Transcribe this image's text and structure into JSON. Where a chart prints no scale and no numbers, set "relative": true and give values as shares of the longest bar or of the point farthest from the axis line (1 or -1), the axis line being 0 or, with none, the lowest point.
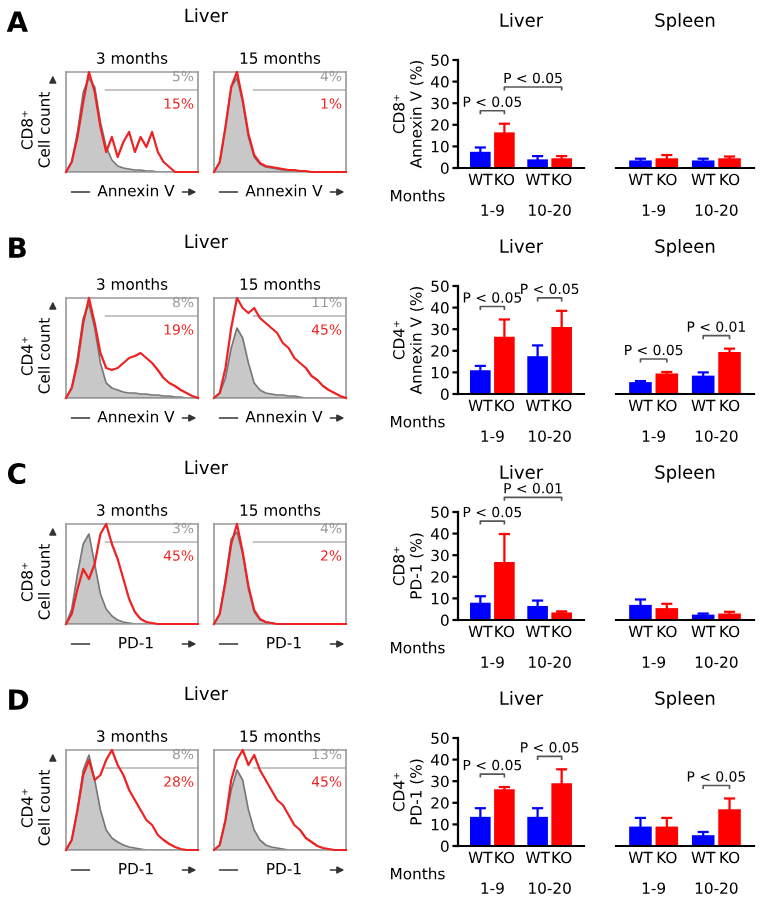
{
  "chart_data": [
    {
      "type": "area",
      "relative": true,
      "categories": [
        null,
        null,
        null,
        null,
        null,
        null,
        null,
        null,
        null,
        null,
        null,
        null,
        null,
        null,
        null,
        null,
        null,
        null,
        null,
        null,
        null,
        null,
        null,
        null
      ],
      "title": "3 months",
      "xlabel": "Annexin V",
      "ylabel": "CD8⁺\nCell count",
      "annotations": [
        "A",
        "Liver",
        "5%",
        "15%"
      ],
      "ref_lines": [
        {
          "axis": "y",
          "value": 0.82,
          "color": "#b0b0b0"
        }
      ],
      "series": [
        {
          "type": "area",
          "color": "#c8c8c8",
          "values": [
            0,
            0.1,
            0.4,
            0.8,
            0.94,
            0.85,
            0.5,
            0.25,
            0.12,
            0.06,
            0.04,
            0.03,
            0.02,
            0.02,
            0.01,
            0.01,
            0,
            0,
            0,
            0,
            0,
            0,
            0,
            0
          ]
        },
        {
          "type": "line",
          "color": "#ee2222",
          "values": [
            0,
            0.1,
            0.35,
            0.7,
            1.0,
            0.8,
            0.45,
            0.2,
            0.35,
            0.15,
            0.3,
            0.4,
            0.2,
            0.35,
            0.25,
            0.4,
            0.2,
            0.1,
            0.05,
            0,
            0,
            0,
            0,
            0
          ]
        }
      ]
    },
    {
      "type": "area",
      "relative": true,
      "categories": [
        null,
        null,
        null,
        null,
        null,
        null,
        null,
        null,
        null,
        null,
        null,
        null,
        null,
        null,
        null,
        null,
        null,
        null,
        null,
        null,
        null,
        null,
        null,
        null
      ],
      "title": "15 months",
      "xlabel": "Annexin V",
      "annotations": [
        "4%",
        "1%"
      ],
      "ref_lines": [
        {
          "axis": "y",
          "value": 0.82,
          "color": "#b0b0b0"
        }
      ],
      "series": [
        {
          "type": "area",
          "color": "#c8c8c8",
          "values": [
            0,
            0.1,
            0.45,
            0.85,
            0.94,
            0.7,
            0.35,
            0.15,
            0.08,
            0.05,
            0.04,
            0.03,
            0.02,
            0.02,
            0.01,
            0.01,
            0,
            0,
            0,
            0,
            0,
            0,
            0,
            0
          ]
        },
        {
          "type": "line",
          "color": "#ee2222",
          "values": [
            0,
            0.1,
            0.45,
            0.85,
            1.0,
            0.72,
            0.38,
            0.17,
            0.09,
            0.06,
            0.05,
            0.04,
            0.03,
            0.02,
            0.02,
            0.01,
            0.01,
            0,
            0,
            0,
            0,
            0,
            0,
            0
          ]
        }
      ]
    },
    {
      "type": "bar",
      "title": "Liver",
      "ylabel": "CD8⁺\nAnnexin V (%)",
      "xlabel": "Months",
      "categories": [
        "1-9",
        "10-20"
      ],
      "ylim": [
        0,
        50
      ],
      "yticks": [
        0,
        10,
        20,
        30,
        40,
        50
      ],
      "series": [
        {
          "name": "WT",
          "color": "#0000ff",
          "values": [
            7.5,
            4
          ],
          "errors": [
            2,
            1.5
          ]
        },
        {
          "name": "KO",
          "color": "#ff0000",
          "values": [
            16.5,
            4.5
          ],
          "errors": [
            4,
            1
          ]
        }
      ],
      "annotations": [
        "P < 0.05",
        null,
        "P < 0.05"
      ],
      "legend": "bottom"
    },
    {
      "type": "bar",
      "title": "Spleen",
      "categories": [
        "1-9",
        "10-20"
      ],
      "ylim": [
        0,
        50
      ],
      "yticks": [
        0,
        10,
        20,
        30,
        40,
        50
      ],
      "tick_labels": "x",
      "series": [
        {
          "name": "WT",
          "color": "#0000ff",
          "values": [
            3.5,
            3.5
          ],
          "errors": [
            0.8,
            0.8
          ]
        },
        {
          "name": "KO",
          "color": "#ff0000",
          "values": [
            4.5,
            4.5
          ],
          "errors": [
            1.5,
            0.8
          ]
        }
      ],
      "legend": "bottom"
    },
    {
      "type": "area",
      "relative": true,
      "categories": [
        null,
        null,
        null,
        null,
        null,
        null,
        null,
        null,
        null,
        null,
        null,
        null,
        null,
        null,
        null,
        null,
        null,
        null,
        null,
        null,
        null,
        null,
        null,
        null
      ],
      "title": "3 months",
      "xlabel": "Annexin V",
      "ylabel": "CD4⁺\nCell count",
      "annotations": [
        "B",
        "Liver",
        "8%",
        "19%"
      ],
      "ref_lines": [
        {
          "axis": "y",
          "value": 0.82,
          "color": "#b0b0b0"
        }
      ],
      "series": [
        {
          "type": "area",
          "color": "#c8c8c8",
          "values": [
            0,
            0.1,
            0.4,
            0.8,
            0.94,
            0.7,
            0.35,
            0.15,
            0.1,
            0.08,
            0.06,
            0.05,
            0.05,
            0.04,
            0.04,
            0.03,
            0.03,
            0.02,
            0.02,
            0.01,
            0.01,
            0,
            0,
            0
          ]
        },
        {
          "type": "line",
          "color": "#ee2222",
          "values": [
            0,
            0.1,
            0.35,
            0.75,
            1.0,
            0.75,
            0.45,
            0.3,
            0.28,
            0.3,
            0.35,
            0.4,
            0.42,
            0.45,
            0.4,
            0.35,
            0.28,
            0.2,
            0.15,
            0.12,
            0.08,
            0.05,
            0.02,
            0
          ]
        }
      ]
    },
    {
      "type": "area",
      "relative": true,
      "categories": [
        null,
        null,
        null,
        null,
        null,
        null,
        null,
        null,
        null,
        null,
        null,
        null,
        null,
        null,
        null,
        null,
        null,
        null,
        null,
        null,
        null,
        null,
        null,
        null
      ],
      "title": "15 months",
      "xlabel": "Annexin V",
      "annotations": [
        "11%",
        "45%"
      ],
      "ref_lines": [
        {
          "axis": "y",
          "value": 0.82,
          "color": "#b0b0b0"
        }
      ],
      "series": [
        {
          "type": "area",
          "color": "#c8c8c8",
          "values": [
            0,
            0.05,
            0.2,
            0.5,
            0.7,
            0.6,
            0.35,
            0.15,
            0.08,
            0.05,
            0.04,
            0.03,
            0.03,
            0.02,
            0.02,
            0.01,
            0,
            0,
            0,
            0,
            0,
            0,
            0,
            0
          ]
        },
        {
          "type": "line",
          "color": "#ee2222",
          "values": [
            0,
            0.05,
            0.3,
            0.7,
            1.0,
            0.9,
            0.85,
            0.9,
            0.8,
            0.75,
            0.7,
            0.65,
            0.55,
            0.5,
            0.4,
            0.35,
            0.3,
            0.22,
            0.18,
            0.12,
            0.08,
            0.05,
            0.02,
            0
          ]
        }
      ]
    },
    {
      "type": "bar",
      "title": "Liver",
      "ylabel": "CD4⁺\nAnnexin V (%)",
      "xlabel": "Months",
      "categories": [
        "1-9",
        "10-20"
      ],
      "ylim": [
        0,
        50
      ],
      "yticks": [
        0,
        10,
        20,
        30,
        40,
        50
      ],
      "series": [
        {
          "name": "WT",
          "color": "#0000ff",
          "values": [
            11,
            17.5
          ],
          "errors": [
            2,
            5
          ]
        },
        {
          "name": "KO",
          "color": "#ff0000",
          "values": [
            26.5,
            31
          ],
          "errors": [
            8,
            7.5
          ]
        }
      ],
      "annotations": [
        "P < 0.05",
        "P < 0.05"
      ],
      "legend": "bottom"
    },
    {
      "type": "bar",
      "title": "Spleen",
      "categories": [
        "1-9",
        "10-20"
      ],
      "ylim": [
        0,
        50
      ],
      "yticks": [
        0,
        10,
        20,
        30,
        40,
        50
      ],
      "tick_labels": "x",
      "series": [
        {
          "name": "WT",
          "color": "#0000ff",
          "values": [
            5.5,
            8.5
          ],
          "errors": [
            0.5,
            1.5
          ]
        },
        {
          "name": "KO",
          "color": "#ff0000",
          "values": [
            9.5,
            19.5
          ],
          "errors": [
            0.7,
            1.5
          ]
        }
      ],
      "annotations": [
        "P < 0.05",
        "P < 0.01"
      ],
      "legend": "bottom"
    },
    {
      "type": "area",
      "relative": true,
      "categories": [
        null,
        null,
        null,
        null,
        null,
        null,
        null,
        null,
        null,
        null,
        null,
        null,
        null,
        null,
        null,
        null,
        null,
        null,
        null,
        null,
        null,
        null,
        null,
        null
      ],
      "title": "3 months",
      "xlabel": "PD-1",
      "ylabel": "CD8⁺\nCell count",
      "annotations": [
        "C",
        "Liver",
        "3%",
        "45%"
      ],
      "ref_lines": [
        {
          "axis": "y",
          "value": 0.82,
          "color": "#b0b0b0"
        }
      ],
      "series": [
        {
          "type": "area",
          "color": "#c8c8c8",
          "values": [
            0,
            0.15,
            0.5,
            0.8,
            0.9,
            0.6,
            0.3,
            0.15,
            0.08,
            0.04,
            0.02,
            0.01,
            0,
            0,
            0,
            0,
            0,
            0,
            0,
            0,
            0,
            0,
            0,
            0
          ]
        },
        {
          "type": "line",
          "color": "#ee2222",
          "values": [
            0,
            0.1,
            0.35,
            0.55,
            0.45,
            0.6,
            0.9,
            1.0,
            0.8,
            0.65,
            0.45,
            0.25,
            0.12,
            0.05,
            0.02,
            0.01,
            0,
            0,
            0,
            0,
            0,
            0,
            0,
            0
          ]
        }
      ]
    },
    {
      "type": "area",
      "relative": true,
      "categories": [
        null,
        null,
        null,
        null,
        null,
        null,
        null,
        null,
        null,
        null,
        null,
        null,
        null,
        null,
        null,
        null,
        null,
        null,
        null,
        null,
        null,
        null,
        null,
        null
      ],
      "title": "15 months",
      "xlabel": "PD-1",
      "annotations": [
        "4%",
        "2%"
      ],
      "ref_lines": [
        {
          "axis": "y",
          "value": 0.82,
          "color": "#b0b0b0"
        }
      ],
      "series": [
        {
          "type": "area",
          "color": "#c8c8c8",
          "values": [
            0,
            0.1,
            0.45,
            0.85,
            0.92,
            0.7,
            0.35,
            0.12,
            0.04,
            0.02,
            0.01,
            0,
            0,
            0,
            0,
            0,
            0,
            0,
            0,
            0,
            0,
            0,
            0,
            0
          ]
        },
        {
          "type": "line",
          "color": "#ee2222",
          "values": [
            0,
            0.1,
            0.42,
            0.8,
            1.0,
            0.72,
            0.38,
            0.14,
            0.05,
            0.02,
            0.01,
            0,
            0,
            0,
            0,
            0,
            0,
            0,
            0,
            0,
            0,
            0,
            0,
            0
          ]
        }
      ]
    },
    {
      "type": "bar",
      "title": "Liver",
      "ylabel": "CD8⁺\nPD-1 (%)",
      "xlabel": "Months",
      "categories": [
        "1-9",
        "10-20"
      ],
      "ylim": [
        0,
        50
      ],
      "yticks": [
        0,
        10,
        20,
        30,
        40,
        50
      ],
      "series": [
        {
          "name": "WT",
          "color": "#0000ff",
          "values": [
            8,
            6.5
          ],
          "errors": [
            3,
            2.5
          ]
        },
        {
          "name": "KO",
          "color": "#ff0000",
          "values": [
            26.8,
            3.5
          ],
          "errors": [
            13,
            0.5
          ]
        }
      ],
      "annotations": [
        "P < 0.05",
        null,
        "P < 0.01"
      ],
      "legend": "bottom"
    },
    {
      "type": "bar",
      "title": "Spleen",
      "categories": [
        "1-9",
        "10-20"
      ],
      "ylim": [
        0,
        50
      ],
      "yticks": [
        0,
        10,
        20,
        30,
        40,
        50
      ],
      "tick_labels": "x",
      "series": [
        {
          "name": "WT",
          "color": "#0000ff",
          "values": [
            7,
            2.5
          ],
          "errors": [
            2.5,
            0.5
          ]
        },
        {
          "name": "KO",
          "color": "#ff0000",
          "values": [
            5.5,
            3
          ],
          "errors": [
            2,
            0.8
          ]
        }
      ],
      "legend": "bottom"
    },
    {
      "type": "area",
      "relative": true,
      "categories": [
        null,
        null,
        null,
        null,
        null,
        null,
        null,
        null,
        null,
        null,
        null,
        null,
        null,
        null,
        null,
        null,
        null,
        null,
        null,
        null,
        null,
        null,
        null,
        null
      ],
      "title": "3 months",
      "xlabel": "PD-1",
      "ylabel": "CD4⁺\nCell count",
      "annotations": [
        "D",
        "Liver",
        "8%",
        "28%"
      ],
      "ref_lines": [
        {
          "axis": "y",
          "value": 0.82,
          "color": "#b0b0b0"
        }
      ],
      "series": [
        {
          "type": "area",
          "color": "#c8c8c8",
          "values": [
            0,
            0.1,
            0.4,
            0.8,
            0.95,
            0.7,
            0.4,
            0.2,
            0.12,
            0.08,
            0.05,
            0.03,
            0.02,
            0.01,
            0,
            0,
            0,
            0,
            0,
            0,
            0,
            0,
            0,
            0
          ]
        },
        {
          "type": "line",
          "color": "#ee2222",
          "values": [
            0,
            0.1,
            0.4,
            0.75,
            0.9,
            0.7,
            0.75,
            0.9,
            1.0,
            0.85,
            0.75,
            0.6,
            0.5,
            0.4,
            0.3,
            0.25,
            0.15,
            0.1,
            0.06,
            0.03,
            0.01,
            0,
            0,
            0
          ]
        }
      ]
    },
    {
      "type": "area",
      "relative": true,
      "categories": [
        null,
        null,
        null,
        null,
        null,
        null,
        null,
        null,
        null,
        null,
        null,
        null,
        null,
        null,
        null,
        null,
        null,
        null,
        null,
        null,
        null,
        null,
        null,
        null
      ],
      "title": "15 months",
      "xlabel": "PD-1",
      "annotations": [
        "13%",
        "45%"
      ],
      "ref_lines": [
        {
          "axis": "y",
          "value": 0.82,
          "color": "#b0b0b0"
        }
      ],
      "series": [
        {
          "type": "area",
          "color": "#c8c8c8",
          "values": [
            0,
            0.05,
            0.3,
            0.6,
            0.8,
            0.7,
            0.4,
            0.2,
            0.1,
            0.05,
            0.03,
            0.02,
            0.01,
            0,
            0,
            0,
            0,
            0,
            0,
            0,
            0,
            0,
            0,
            0
          ]
        },
        {
          "type": "line",
          "color": "#ee2222",
          "values": [
            0,
            0.05,
            0.3,
            0.7,
            0.9,
            1.0,
            0.85,
            0.95,
            0.8,
            0.7,
            0.6,
            0.5,
            0.45,
            0.35,
            0.25,
            0.2,
            0.12,
            0.08,
            0.04,
            0.02,
            0.01,
            0,
            0,
            0
          ]
        }
      ]
    },
    {
      "type": "bar",
      "title": "Liver",
      "ylabel": "CD4⁺\nPD-1 (%)",
      "xlabel": "Months",
      "categories": [
        "1-9",
        "10-20"
      ],
      "ylim": [
        0,
        50
      ],
      "yticks": [
        0,
        10,
        20,
        30,
        40,
        50
      ],
      "series": [
        {
          "name": "WT",
          "color": "#0000ff",
          "values": [
            13.5,
            13.5
          ],
          "errors": [
            4,
            4
          ]
        },
        {
          "name": "KO",
          "color": "#ff0000",
          "values": [
            26.3,
            29
          ],
          "errors": [
            1,
            6.5
          ]
        }
      ],
      "annotations": [
        "P < 0.05",
        "P < 0.05"
      ],
      "legend": "bottom"
    },
    {
      "type": "bar",
      "title": "Spleen",
      "categories": [
        "1-9",
        "10-20"
      ],
      "ylim": [
        0,
        50
      ],
      "yticks": [
        0,
        10,
        20,
        30,
        40,
        50
      ],
      "tick_labels": "x",
      "series": [
        {
          "name": "WT",
          "color": "#0000ff",
          "values": [
            9,
            5
          ],
          "errors": [
            4,
            1.5
          ]
        },
        {
          "name": "KO",
          "color": "#ff0000",
          "values": [
            9,
            17
          ],
          "errors": [
            4,
            5
          ]
        }
      ],
      "annotations": [
        null,
        "P < 0.05"
      ],
      "legend": "bottom"
    }
  ]
}
